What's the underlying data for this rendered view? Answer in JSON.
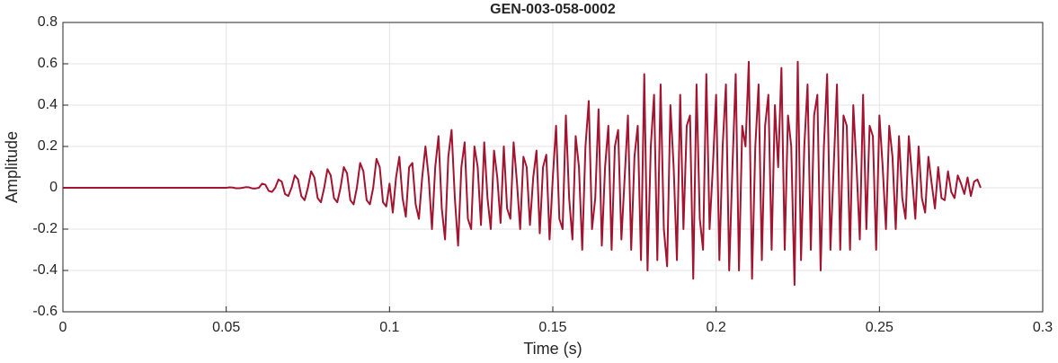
{
  "chart_data": {
    "type": "line",
    "title": "GEN-003-058-0002",
    "xlabel": "Time (s)",
    "ylabel": "Amplitude",
    "color": "#A2142F",
    "grid": true,
    "xlim": [
      0,
      0.3
    ],
    "ylim": [
      -0.6,
      0.8
    ],
    "xticks": [
      0,
      0.05,
      0.1,
      0.15,
      0.2,
      0.25,
      0.3
    ],
    "yticks": [
      -0.6,
      -0.4,
      -0.2,
      0,
      0.2,
      0.4,
      0.6,
      0.8
    ],
    "x": [
      0,
      0.05,
      0.051,
      0.052,
      0.053,
      0.054,
      0.055,
      0.056,
      0.057,
      0.058,
      0.059,
      0.06,
      0.061,
      0.062,
      0.063,
      0.064,
      0.065,
      0.066,
      0.067,
      0.068,
      0.069,
      0.07,
      0.071,
      0.072,
      0.073,
      0.074,
      0.075,
      0.076,
      0.077,
      0.078,
      0.079,
      0.08,
      0.081,
      0.082,
      0.083,
      0.084,
      0.085,
      0.086,
      0.087,
      0.088,
      0.089,
      0.09,
      0.091,
      0.092,
      0.093,
      0.094,
      0.095,
      0.096,
      0.097,
      0.098,
      0.099,
      0.1,
      0.101,
      0.102,
      0.103,
      0.104,
      0.105,
      0.106,
      0.107,
      0.108,
      0.109,
      0.11,
      0.111,
      0.112,
      0.113,
      0.114,
      0.115,
      0.116,
      0.117,
      0.118,
      0.119,
      0.12,
      0.121,
      0.122,
      0.123,
      0.124,
      0.125,
      0.126,
      0.127,
      0.128,
      0.129,
      0.13,
      0.131,
      0.132,
      0.133,
      0.134,
      0.135,
      0.136,
      0.137,
      0.138,
      0.139,
      0.14,
      0.141,
      0.142,
      0.143,
      0.144,
      0.145,
      0.146,
      0.147,
      0.148,
      0.149,
      0.15,
      0.151,
      0.152,
      0.153,
      0.154,
      0.155,
      0.156,
      0.157,
      0.158,
      0.159,
      0.16,
      0.161,
      0.162,
      0.163,
      0.164,
      0.165,
      0.166,
      0.167,
      0.168,
      0.169,
      0.17,
      0.171,
      0.172,
      0.173,
      0.174,
      0.175,
      0.176,
      0.177,
      0.178,
      0.179,
      0.18,
      0.181,
      0.182,
      0.183,
      0.184,
      0.185,
      0.186,
      0.187,
      0.188,
      0.189,
      0.19,
      0.191,
      0.192,
      0.193,
      0.194,
      0.195,
      0.196,
      0.197,
      0.198,
      0.199,
      0.2,
      0.201,
      0.202,
      0.203,
      0.204,
      0.205,
      0.206,
      0.207,
      0.208,
      0.209,
      0.21,
      0.211,
      0.212,
      0.213,
      0.214,
      0.215,
      0.216,
      0.217,
      0.218,
      0.219,
      0.22,
      0.221,
      0.222,
      0.223,
      0.224,
      0.225,
      0.226,
      0.227,
      0.228,
      0.229,
      0.23,
      0.231,
      0.232,
      0.233,
      0.234,
      0.235,
      0.236,
      0.237,
      0.238,
      0.239,
      0.24,
      0.241,
      0.242,
      0.243,
      0.244,
      0.245,
      0.246,
      0.247,
      0.248,
      0.249,
      0.25,
      0.251,
      0.252,
      0.253,
      0.254,
      0.255,
      0.256,
      0.257,
      0.258,
      0.259,
      0.26,
      0.261,
      0.262,
      0.263,
      0.264,
      0.265,
      0.266,
      0.267,
      0.268,
      0.269,
      0.27,
      0.271,
      0.272,
      0.273,
      0.274,
      0.275,
      0.276,
      0.277,
      0.278,
      0.279,
      0.28,
      0.281
    ],
    "values": [
      0,
      0,
      0.002,
      0.001,
      -0.002,
      -0.002,
      0,
      0.003,
      0.002,
      -0.003,
      -0.003,
      0,
      0.02,
      0.015,
      -0.015,
      -0.02,
      0,
      0.04,
      0.03,
      -0.03,
      -0.04,
      0,
      0.06,
      0.04,
      -0.04,
      -0.06,
      0,
      0.08,
      0.05,
      -0.05,
      -0.07,
      0,
      0.09,
      0.06,
      -0.05,
      -0.07,
      0,
      0.1,
      0.07,
      -0.06,
      -0.08,
      0,
      0.12,
      0.08,
      -0.06,
      -0.08,
      0,
      0.14,
      0.1,
      -0.07,
      -0.09,
      0.02,
      -0.12,
      0.05,
      0.15,
      -0.05,
      -0.14,
      0.1,
      0.12,
      -0.08,
      -0.15,
      0.05,
      0.2,
      0.05,
      -0.2,
      0.1,
      0.25,
      -0.1,
      -0.25,
      0.15,
      0.28,
      -0.05,
      -0.28,
      0.1,
      0.22,
      -0.15,
      -0.2,
      0.2,
      0.1,
      -0.18,
      0.22,
      -0.05,
      -0.2,
      0.18,
      0.05,
      -0.17,
      0.2,
      -0.1,
      -0.15,
      0.22,
      0.03,
      -0.2,
      0.15,
      0.1,
      -0.18,
      0.05,
      0.18,
      -0.22,
      0.1,
      0.16,
      -0.25,
      0.05,
      0.3,
      -0.15,
      -0.2,
      0.35,
      -0.05,
      -0.25,
      0.25,
      0.1,
      -0.3,
      0.2,
      0.42,
      -0.2,
      -0.05,
      0.38,
      -0.28,
      0.1,
      0.3,
      -0.3,
      0.2,
      0.28,
      -0.25,
      0.05,
      0.35,
      -0.3,
      0.15,
      0.3,
      -0.35,
      0.55,
      -0.4,
      0.2,
      0.45,
      -0.35,
      0.5,
      -0.2,
      -0.38,
      0.4,
      0.1,
      -0.35,
      0.45,
      -0.2,
      0.3,
      0.35,
      -0.44,
      0.5,
      -0.15,
      -0.3,
      0.55,
      -0.2,
      0.1,
      0.45,
      -0.35,
      0.2,
      0.5,
      -0.4,
      0.1,
      0.55,
      -0.4,
      0.3,
      0.2,
      0.61,
      -0.44,
      0.2,
      0.5,
      -0.35,
      0.3,
      0.45,
      -0.3,
      0.4,
      0.1,
      0.58,
      -0.3,
      0.35,
      0.2,
      -0.47,
      0.61,
      -0.35,
      0.2,
      0.5,
      -0.3,
      0.35,
      0.45,
      -0.4,
      0.2,
      0.55,
      -0.3,
      0.1,
      0.5,
      -0.3,
      0.35,
      0.3,
      -0.3,
      0.4,
      0.1,
      -0.25,
      0.45,
      -0.2,
      0.3,
      0.25,
      -0.3,
      0.35,
      0.1,
      -0.2,
      0.3,
      0.15,
      -0.2,
      0.25,
      -0.05,
      -0.15,
      0.25,
      0.05,
      -0.15,
      0.2,
      -0.05,
      -0.12,
      0.15,
      0.02,
      -0.1,
      0.1,
      -0.05,
      -0.06,
      0.08,
      -0.02,
      -0.05,
      0.06,
      0.02,
      -0.03,
      0.05,
      -0.04,
      0.03,
      0.04,
      0
    ]
  }
}
